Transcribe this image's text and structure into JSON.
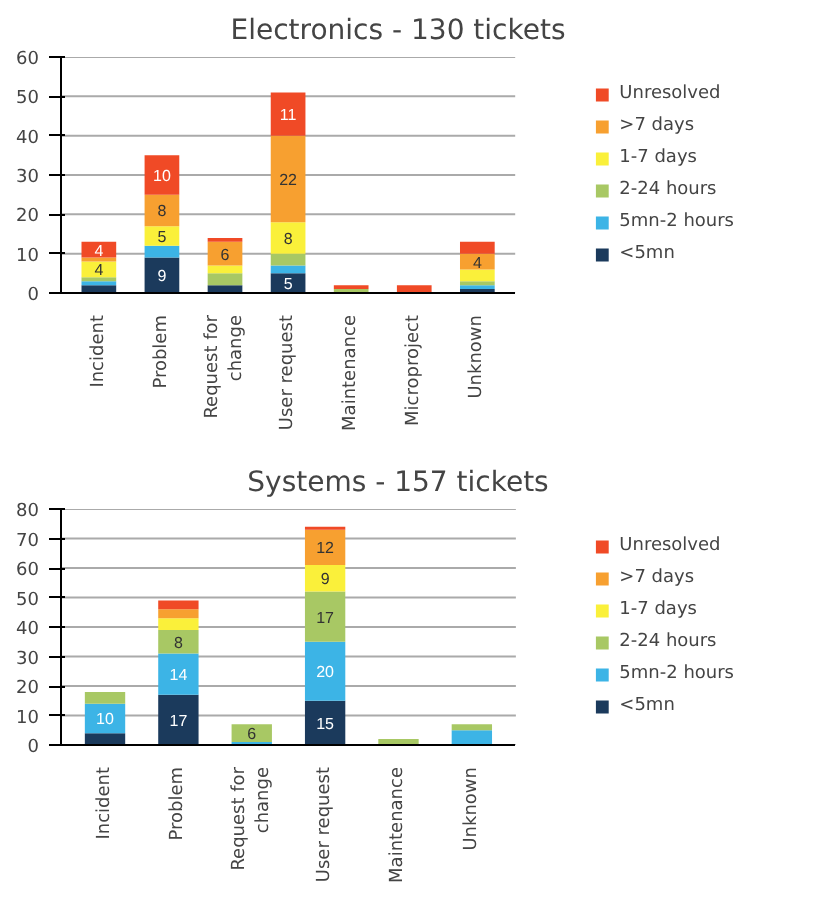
{
  "chart_data": [
    {
      "type": "bar",
      "title": "Electronics - 130 tickets",
      "stacked": true,
      "legend": "right",
      "grid": "y",
      "categories": [
        "Incident",
        "Problem",
        "Request for change",
        "User request",
        "Maintenance",
        "Microproject",
        "Unknown"
      ],
      "ylim": [
        0,
        60
      ],
      "yticks": [
        0,
        10,
        20,
        30,
        40,
        50,
        60
      ],
      "series": [
        {
          "name": "<5mn",
          "color": "#1b3a5c",
          "values": [
            2,
            9,
            2,
            5,
            null,
            null,
            1
          ],
          "value_labels": [
            null,
            "9",
            null,
            "5",
            null,
            null,
            null
          ]
        },
        {
          "name": "5mn-2 hours",
          "color": "#3cb4e6",
          "values": [
            1,
            3,
            null,
            2,
            null,
            null,
            1
          ],
          "value_labels": [
            null,
            null,
            null,
            null,
            null,
            null,
            null
          ]
        },
        {
          "name": "2-24 hours",
          "color": "#a8c864",
          "values": [
            1,
            null,
            3,
            3,
            1,
            null,
            1
          ],
          "value_labels": [
            null,
            null,
            null,
            null,
            null,
            null,
            null
          ]
        },
        {
          "name": "1-7 days",
          "color": "#faf03a",
          "values": [
            4,
            5,
            2,
            8,
            null,
            null,
            3
          ],
          "value_labels": [
            "4",
            "5",
            null,
            "8",
            null,
            null,
            null
          ]
        },
        {
          "name": ">7 days",
          "color": "#f7a030",
          "values": [
            1,
            8,
            6,
            22,
            null,
            null,
            4
          ],
          "value_labels": [
            null,
            "8",
            "6",
            "22",
            null,
            null,
            "4"
          ]
        },
        {
          "name": "Unresolved",
          "color": "#f04a26",
          "values": [
            4,
            10,
            1,
            11,
            1,
            2,
            3
          ],
          "value_labels": [
            "4",
            "10",
            null,
            "11",
            null,
            null,
            null
          ]
        }
      ]
    },
    {
      "type": "bar",
      "title": "Systems - 157 tickets",
      "stacked": true,
      "legend": "right",
      "grid": "y",
      "categories": [
        "Incident",
        "Problem",
        "Request for change",
        "User request",
        "Maintenance",
        "Unknown"
      ],
      "ylim": [
        0,
        80
      ],
      "yticks": [
        0,
        10,
        20,
        30,
        40,
        50,
        60,
        70,
        80
      ],
      "series": [
        {
          "name": "<5mn",
          "color": "#1b3a5c",
          "values": [
            4,
            17,
            null,
            15,
            null,
            null
          ],
          "value_labels": [
            null,
            "17",
            null,
            "15",
            null,
            null
          ]
        },
        {
          "name": "5mn-2 hours",
          "color": "#3cb4e6",
          "values": [
            10,
            14,
            1,
            20,
            null,
            5
          ],
          "value_labels": [
            "10",
            "14",
            null,
            "20",
            null,
            null
          ]
        },
        {
          "name": "2-24 hours",
          "color": "#a8c864",
          "values": [
            4,
            8,
            6,
            17,
            2,
            2
          ],
          "value_labels": [
            null,
            "8",
            "6",
            "17",
            null,
            null
          ]
        },
        {
          "name": "1-7 days",
          "color": "#faf03a",
          "values": [
            null,
            4,
            null,
            9,
            null,
            null
          ],
          "value_labels": [
            null,
            null,
            null,
            "9",
            null,
            null
          ]
        },
        {
          "name": ">7 days",
          "color": "#f7a030",
          "values": [
            null,
            3,
            null,
            12,
            null,
            null
          ],
          "value_labels": [
            null,
            null,
            null,
            "12",
            null,
            null
          ]
        },
        {
          "name": "Unresolved",
          "color": "#f04a26",
          "values": [
            null,
            3,
            null,
            1,
            null,
            null
          ],
          "value_labels": [
            null,
            null,
            null,
            null,
            null,
            null
          ]
        }
      ]
    }
  ]
}
